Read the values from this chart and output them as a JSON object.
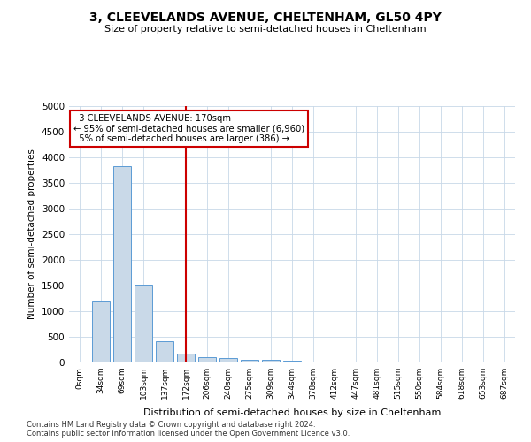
{
  "title": "3, CLEEVELANDS AVENUE, CHELTENHAM, GL50 4PY",
  "subtitle": "Size of property relative to semi-detached houses in Cheltenham",
  "xlabel": "Distribution of semi-detached houses by size in Cheltenham",
  "ylabel": "Number of semi-detached properties",
  "bar_color": "#c9d9e8",
  "bar_edge_color": "#5b9bd5",
  "background_color": "#ffffff",
  "grid_color": "#c8d8e8",
  "annotation_box_color": "#cc0000",
  "vline_color": "#cc0000",
  "categories": [
    "0sqm",
    "34sqm",
    "69sqm",
    "103sqm",
    "137sqm",
    "172sqm",
    "206sqm",
    "240sqm",
    "275sqm",
    "309sqm",
    "344sqm",
    "378sqm",
    "412sqm",
    "447sqm",
    "481sqm",
    "515sqm",
    "550sqm",
    "584sqm",
    "618sqm",
    "653sqm",
    "687sqm"
  ],
  "values": [
    20,
    1190,
    3820,
    1520,
    410,
    165,
    110,
    80,
    60,
    55,
    30,
    0,
    0,
    0,
    0,
    0,
    0,
    0,
    0,
    0,
    0
  ],
  "ylim": [
    0,
    5000
  ],
  "yticks": [
    0,
    500,
    1000,
    1500,
    2000,
    2500,
    3000,
    3500,
    4000,
    4500,
    5000
  ],
  "property_label": "3 CLEEVELANDS AVENUE: 170sqm",
  "pct_smaller": 95,
  "n_smaller": 6960,
  "pct_larger": 5,
  "n_larger": 386,
  "vline_x": 5.0,
  "footer_line1": "Contains HM Land Registry data © Crown copyright and database right 2024.",
  "footer_line2": "Contains public sector information licensed under the Open Government Licence v3.0."
}
